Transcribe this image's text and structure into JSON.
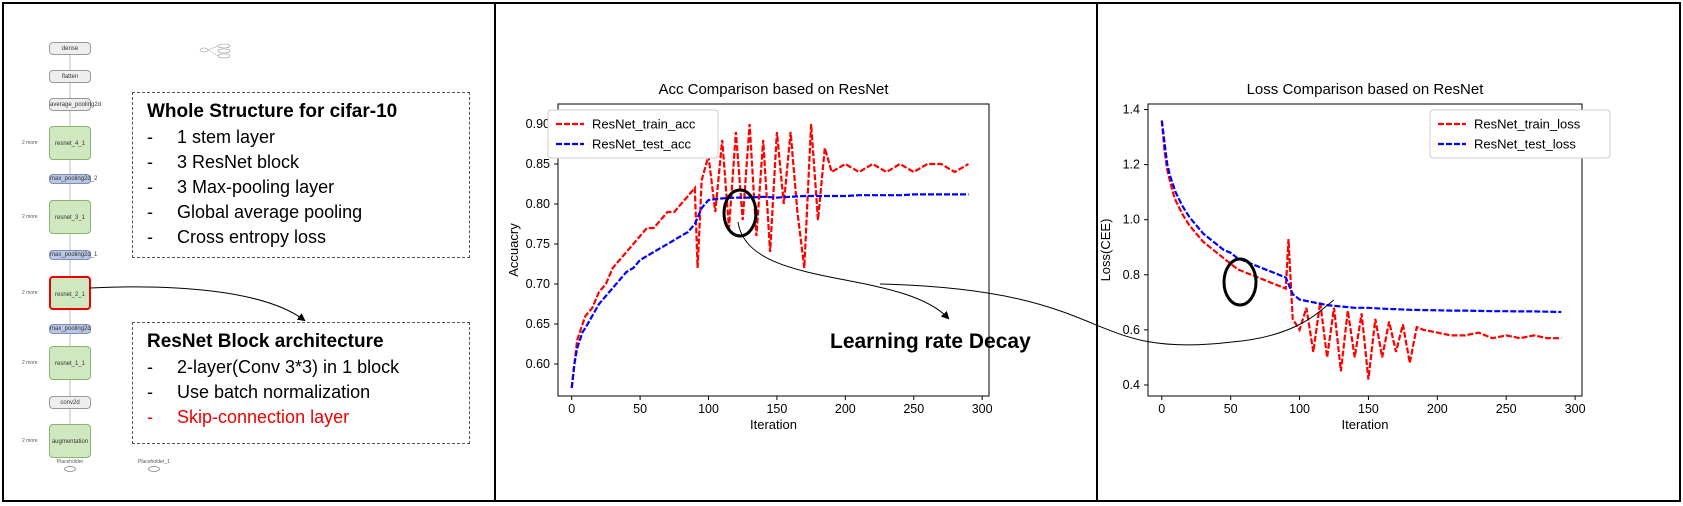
{
  "graph": {
    "nodes": [
      "dense",
      "flatten",
      "average_pooling2d",
      "resnet_4_1",
      "max_pooling2d_2",
      "resnet_3_1",
      "max_pooling2d_1",
      "resnet_2_1",
      "max_pooling2d",
      "resnet_1_1",
      "conv2d",
      "augmentation"
    ],
    "side_label": "2 more",
    "placeholders": [
      "Placeholder",
      "Placeholder_1"
    ]
  },
  "structure_box": {
    "title": "Whole Structure for cifar-10",
    "items": [
      "1 stem layer",
      "3 ResNet block",
      "3 Max-pooling layer",
      "Global average pooling",
      "Cross entropy loss"
    ]
  },
  "block_box": {
    "title": "ResNet Block architecture",
    "items": [
      "2-layer(Conv 3*3) in 1 block",
      "Use batch normalization",
      "Skip-connection layer"
    ],
    "highlight_color": "#e00000"
  },
  "annotation": "Learning rate Decay",
  "chart_data": [
    {
      "type": "line",
      "title": "Acc Comparison based on ResNet",
      "xlabel": "Iteration",
      "ylabel": "Accuacry",
      "xlim": [
        -10,
        305
      ],
      "ylim": [
        0.56,
        0.925
      ],
      "xticks": [
        0,
        50,
        100,
        150,
        200,
        250,
        300
      ],
      "yticks": [
        0.6,
        0.65,
        0.7,
        0.75,
        0.8,
        0.85,
        0.9
      ],
      "legend_position": "top-left",
      "series": [
        {
          "name": "ResNet_train_acc",
          "color": "#ff0000",
          "x": [
            0,
            2,
            4,
            6,
            8,
            10,
            15,
            20,
            25,
            30,
            35,
            40,
            45,
            50,
            55,
            60,
            65,
            70,
            75,
            80,
            85,
            90,
            92,
            95,
            100,
            105,
            110,
            115,
            120,
            125,
            130,
            135,
            140,
            145,
            150,
            155,
            160,
            165,
            170,
            175,
            180,
            185,
            190,
            200,
            210,
            220,
            230,
            240,
            250,
            260,
            270,
            280,
            290
          ],
          "y": [
            0.57,
            0.6,
            0.63,
            0.64,
            0.65,
            0.66,
            0.67,
            0.69,
            0.7,
            0.72,
            0.73,
            0.74,
            0.75,
            0.76,
            0.77,
            0.77,
            0.78,
            0.79,
            0.79,
            0.8,
            0.81,
            0.82,
            0.72,
            0.83,
            0.86,
            0.79,
            0.88,
            0.77,
            0.89,
            0.78,
            0.9,
            0.76,
            0.88,
            0.74,
            0.89,
            0.8,
            0.89,
            0.79,
            0.72,
            0.9,
            0.78,
            0.87,
            0.84,
            0.85,
            0.84,
            0.85,
            0.84,
            0.85,
            0.84,
            0.85,
            0.85,
            0.84,
            0.85
          ]
        },
        {
          "name": "ResNet_test_acc",
          "color": "#0000ff",
          "x": [
            0,
            2,
            4,
            6,
            8,
            10,
            15,
            20,
            25,
            30,
            35,
            40,
            45,
            50,
            55,
            60,
            65,
            70,
            75,
            80,
            85,
            90,
            95,
            100,
            110,
            120,
            130,
            140,
            150,
            160,
            170,
            180,
            190,
            200,
            210,
            220,
            230,
            240,
            250,
            260,
            270,
            280,
            290
          ],
          "y": [
            0.57,
            0.6,
            0.62,
            0.63,
            0.64,
            0.645,
            0.66,
            0.675,
            0.685,
            0.695,
            0.705,
            0.715,
            0.72,
            0.73,
            0.735,
            0.74,
            0.745,
            0.75,
            0.755,
            0.76,
            0.765,
            0.775,
            0.795,
            0.805,
            0.807,
            0.808,
            0.808,
            0.809,
            0.808,
            0.809,
            0.81,
            0.81,
            0.81,
            0.81,
            0.811,
            0.811,
            0.811,
            0.811,
            0.812,
            0.812,
            0.812,
            0.812,
            0.812
          ]
        }
      ]
    },
    {
      "type": "line",
      "title": "Loss Comparison based on ResNet",
      "xlabel": "Iteration",
      "ylabel": "Loss(CEE)",
      "xlim": [
        -10,
        305
      ],
      "ylim": [
        0.36,
        1.42
      ],
      "xticks": [
        0,
        50,
        100,
        150,
        200,
        250,
        300
      ],
      "yticks": [
        0.4,
        0.6,
        0.8,
        1.0,
        1.2,
        1.4
      ],
      "legend_position": "top-right",
      "series": [
        {
          "name": "ResNet_train_loss",
          "color": "#ff0000",
          "x": [
            0,
            2,
            4,
            6,
            8,
            10,
            15,
            20,
            25,
            30,
            35,
            40,
            45,
            50,
            55,
            60,
            65,
            70,
            75,
            80,
            85,
            90,
            92,
            95,
            100,
            105,
            110,
            115,
            120,
            125,
            130,
            135,
            140,
            145,
            150,
            155,
            160,
            165,
            170,
            175,
            180,
            185,
            190,
            200,
            210,
            220,
            230,
            240,
            250,
            260,
            270,
            280,
            290
          ],
          "y": [
            1.36,
            1.25,
            1.18,
            1.14,
            1.1,
            1.07,
            1.02,
            0.98,
            0.95,
            0.92,
            0.9,
            0.88,
            0.86,
            0.84,
            0.82,
            0.81,
            0.8,
            0.79,
            0.78,
            0.77,
            0.76,
            0.75,
            0.93,
            0.64,
            0.6,
            0.68,
            0.52,
            0.7,
            0.5,
            0.68,
            0.45,
            0.67,
            0.5,
            0.66,
            0.42,
            0.64,
            0.5,
            0.63,
            0.52,
            0.62,
            0.48,
            0.61,
            0.6,
            0.59,
            0.58,
            0.58,
            0.59,
            0.57,
            0.58,
            0.57,
            0.58,
            0.57,
            0.57
          ]
        },
        {
          "name": "ResNet_test_loss",
          "color": "#0000ff",
          "x": [
            0,
            2,
            4,
            6,
            8,
            10,
            15,
            20,
            25,
            30,
            35,
            40,
            45,
            50,
            55,
            60,
            65,
            70,
            75,
            80,
            85,
            90,
            95,
            100,
            110,
            120,
            130,
            140,
            150,
            160,
            170,
            180,
            190,
            200,
            210,
            220,
            230,
            240,
            250,
            260,
            270,
            280,
            290
          ],
          "y": [
            1.36,
            1.28,
            1.2,
            1.16,
            1.13,
            1.1,
            1.05,
            1.01,
            0.98,
            0.95,
            0.93,
            0.91,
            0.89,
            0.88,
            0.86,
            0.85,
            0.84,
            0.83,
            0.82,
            0.81,
            0.8,
            0.79,
            0.73,
            0.71,
            0.7,
            0.69,
            0.685,
            0.68,
            0.68,
            0.677,
            0.675,
            0.673,
            0.672,
            0.671,
            0.67,
            0.67,
            0.669,
            0.668,
            0.668,
            0.667,
            0.667,
            0.666,
            0.665
          ]
        }
      ]
    }
  ]
}
